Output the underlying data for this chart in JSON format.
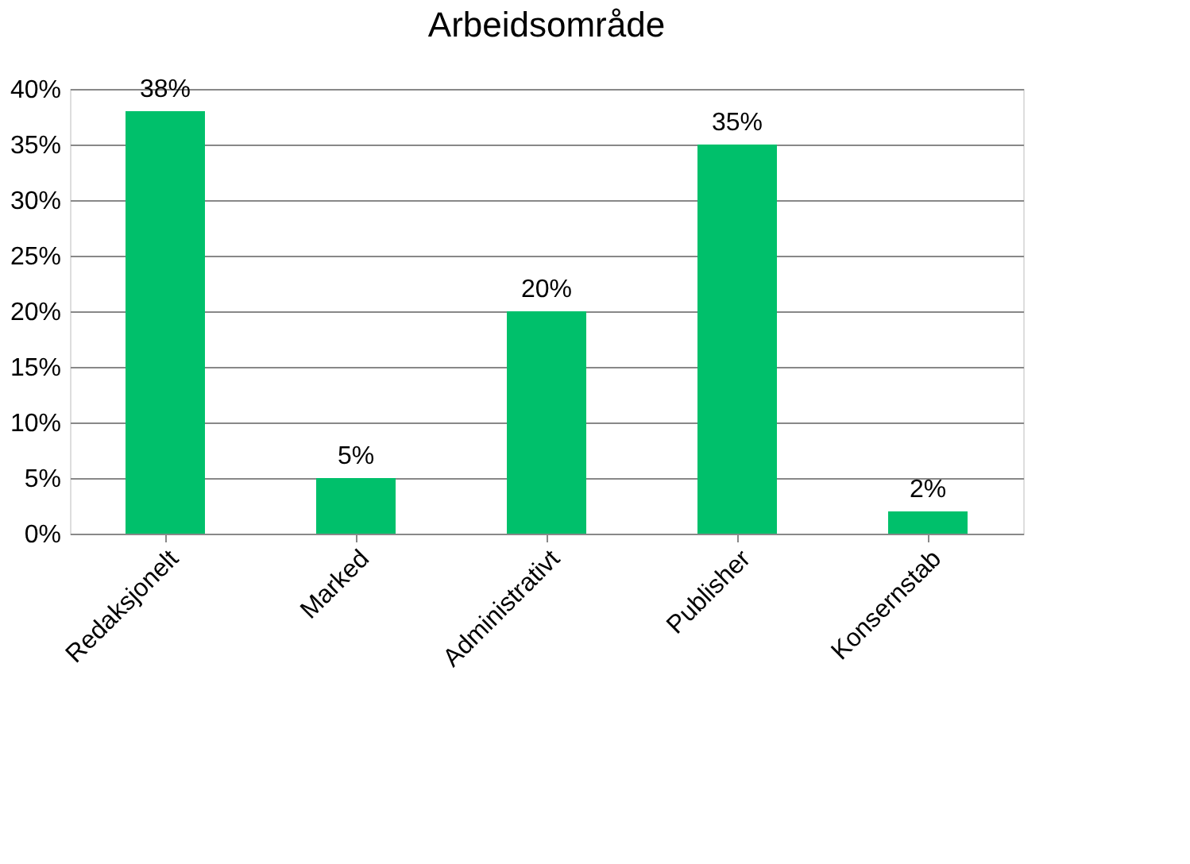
{
  "chart_data": {
    "type": "bar",
    "title": "Arbeidsområde",
    "categories": [
      "Redaksjonelt",
      "Marked",
      "Administrativt",
      "Publisher",
      "Konsernstab"
    ],
    "values": [
      38,
      5,
      20,
      35,
      2
    ],
    "value_labels": [
      "38%",
      "5%",
      "20%",
      "35%",
      "2%"
    ],
    "color": "#00c06b",
    "ylim": [
      0,
      40
    ],
    "yticks": [
      {
        "value": 0,
        "label": "0%"
      },
      {
        "value": 5,
        "label": "5%"
      },
      {
        "value": 10,
        "label": "10%"
      },
      {
        "value": 15,
        "label": "15%"
      },
      {
        "value": 20,
        "label": "20%"
      },
      {
        "value": 25,
        "label": "25%"
      },
      {
        "value": 30,
        "label": "30%"
      },
      {
        "value": 35,
        "label": "35%"
      },
      {
        "value": 40,
        "label": "40%"
      }
    ],
    "grid": "y"
  }
}
